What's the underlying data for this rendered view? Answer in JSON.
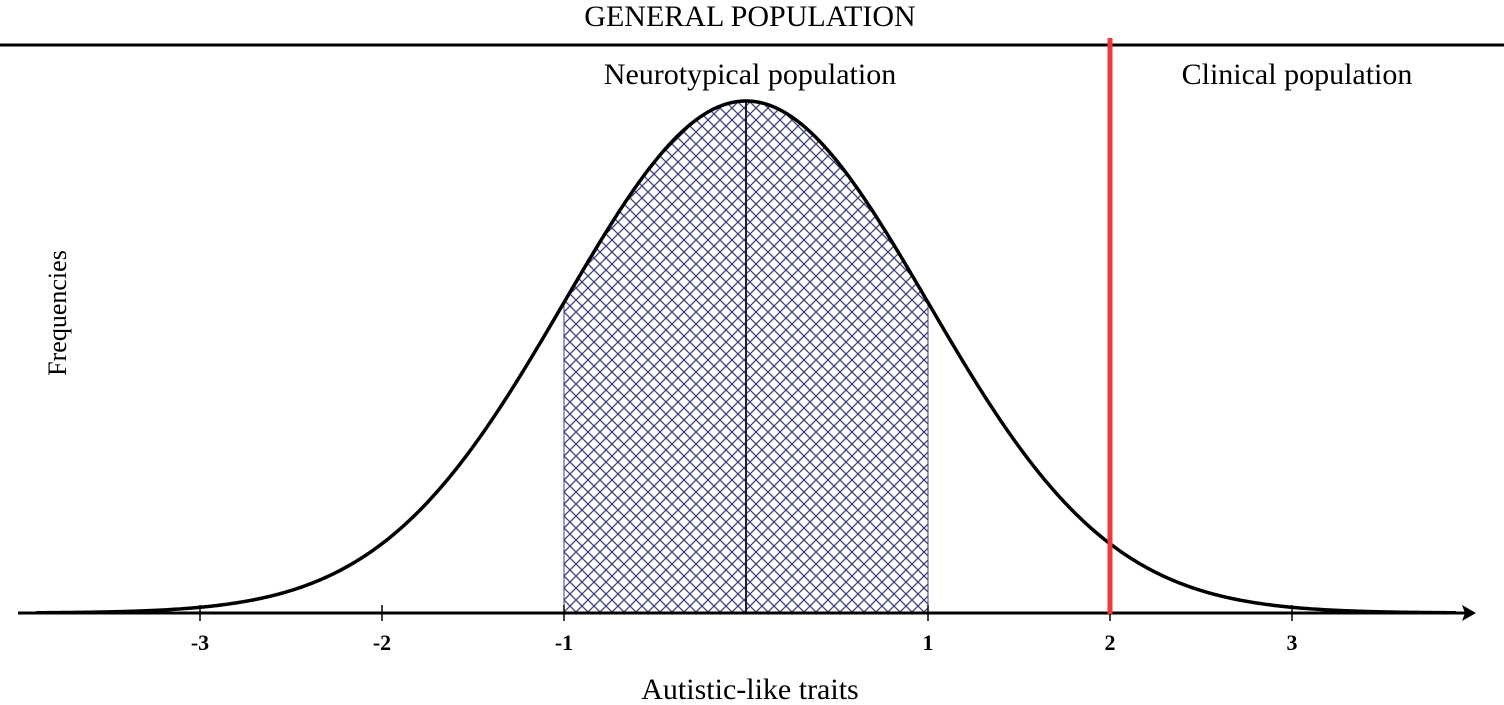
{
  "chart_data": {
    "type": "area",
    "title": "GENERAL POPULATION",
    "xlabel": "Autistic-like traits",
    "ylabel": "Frequencies",
    "xlim": [
      -3.9,
      3.9
    ],
    "x_ticks": [
      -3,
      -2,
      -1,
      1,
      2,
      3
    ],
    "tick_labels": [
      "-3",
      "-2",
      "-1",
      "1",
      "2",
      "3"
    ],
    "curve": "standard normal distribution",
    "mean": 0,
    "sd": 1,
    "shaded_region": {
      "from": -1,
      "to": 1,
      "pattern": "crosshatch",
      "color": "#3b3f7a"
    },
    "mean_line_x": 0,
    "cutoff": {
      "x": 2,
      "color": "#ee3a3a"
    },
    "regions": [
      {
        "label": "Neurotypical population"
      },
      {
        "label": "Clinical population"
      }
    ],
    "grid": false,
    "legend": "none"
  }
}
